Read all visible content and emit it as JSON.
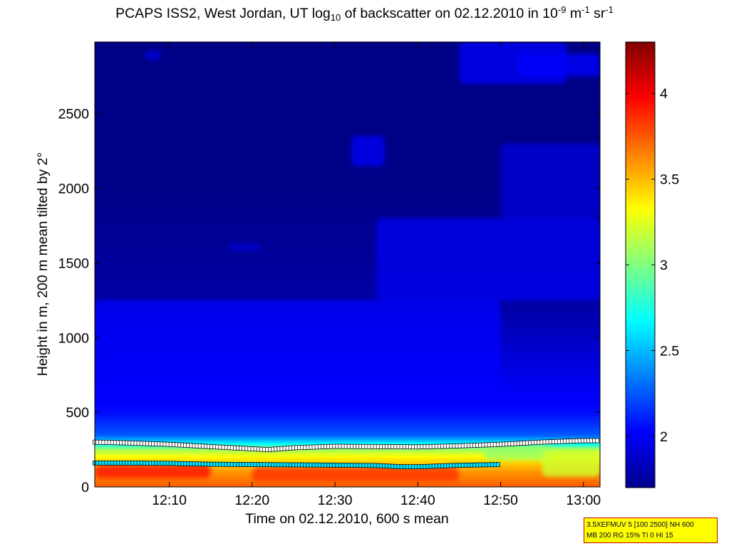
{
  "title": {
    "prefix": "PCAPS ISS2, West Jordan, UT log",
    "sub": "10",
    "mid1": " of backscatter on 02.12.2010 in 10",
    "exp1": "-9",
    "mid2": " m",
    "exp2": "-1",
    "mid3": " sr",
    "exp3": "-1"
  },
  "info_box": {
    "line1": "3.5XEFMUV 5 [100 2500] NH 600",
    "line2": "MB 200 RG 15% TI 0 HI 15"
  },
  "colors": {
    "colormap": "jet",
    "upper_layer_marker_fill": "#ffffff",
    "lower_layer_marker_fill": "#00e5ff",
    "marker_edge": "#000000",
    "info_box_fill": "#ffff00",
    "info_box_border": "#cc0000"
  },
  "chart_data": {
    "type": "heatmap",
    "title": "PCAPS ISS2, West Jordan, UT log10 of backscatter on 02.12.2010 in 10-9 m-1 sr-1",
    "xlabel": "Time on 02.12.2010, 600 s mean",
    "ylabel": "Height in m, 200 m mean tilted by 2°",
    "x_unit": "time HH:MM",
    "xlim": [
      "12:01",
      "13:02"
    ],
    "ylim": [
      0,
      2980
    ],
    "x_ticks": [
      "12:10",
      "12:20",
      "12:30",
      "12:40",
      "12:50",
      "13:00"
    ],
    "y_ticks": [
      0,
      500,
      1000,
      1500,
      2000,
      2500
    ],
    "colorbar": {
      "clim": [
        1.7,
        4.3
      ],
      "ticks": [
        2,
        2.5,
        3,
        3.5,
        4
      ],
      "colormap": "jet"
    },
    "grid": false,
    "vertical_profile_typical": [
      {
        "height": 0,
        "value": 3.75
      },
      {
        "height": 100,
        "value": 3.6
      },
      {
        "height": 200,
        "value": 3.35
      },
      {
        "height": 250,
        "value": 3.1
      },
      {
        "height": 300,
        "value": 2.6
      },
      {
        "height": 350,
        "value": 2.25
      },
      {
        "height": 500,
        "value": 2.05
      },
      {
        "height": 800,
        "value": 1.95
      },
      {
        "height": 1200,
        "value": 1.8
      },
      {
        "height": 2000,
        "value": 1.72
      }
    ],
    "series": [
      {
        "name": "",
        "marker": "square",
        "x": [
          "12:01",
          "12:05",
          "12:10",
          "12:15",
          "12:20",
          "12:22",
          "12:25",
          "12:30",
          "12:35",
          "12:40",
          "12:45",
          "12:50",
          "12:55",
          "13:00",
          "13:02"
        ],
        "y": [
          300,
          295,
          285,
          270,
          255,
          250,
          262,
          272,
          270,
          268,
          275,
          285,
          300,
          310,
          310
        ]
      },
      {
        "name": "",
        "marker": "square",
        "x": [
          "12:01",
          "12:05",
          "12:10",
          "12:15",
          "12:20",
          "12:25",
          "12:30",
          "12:35",
          "12:38",
          "12:40",
          "12:45",
          "12:50"
        ],
        "y": [
          160,
          160,
          158,
          152,
          150,
          148,
          146,
          143,
          135,
          135,
          145,
          150
        ]
      }
    ]
  }
}
